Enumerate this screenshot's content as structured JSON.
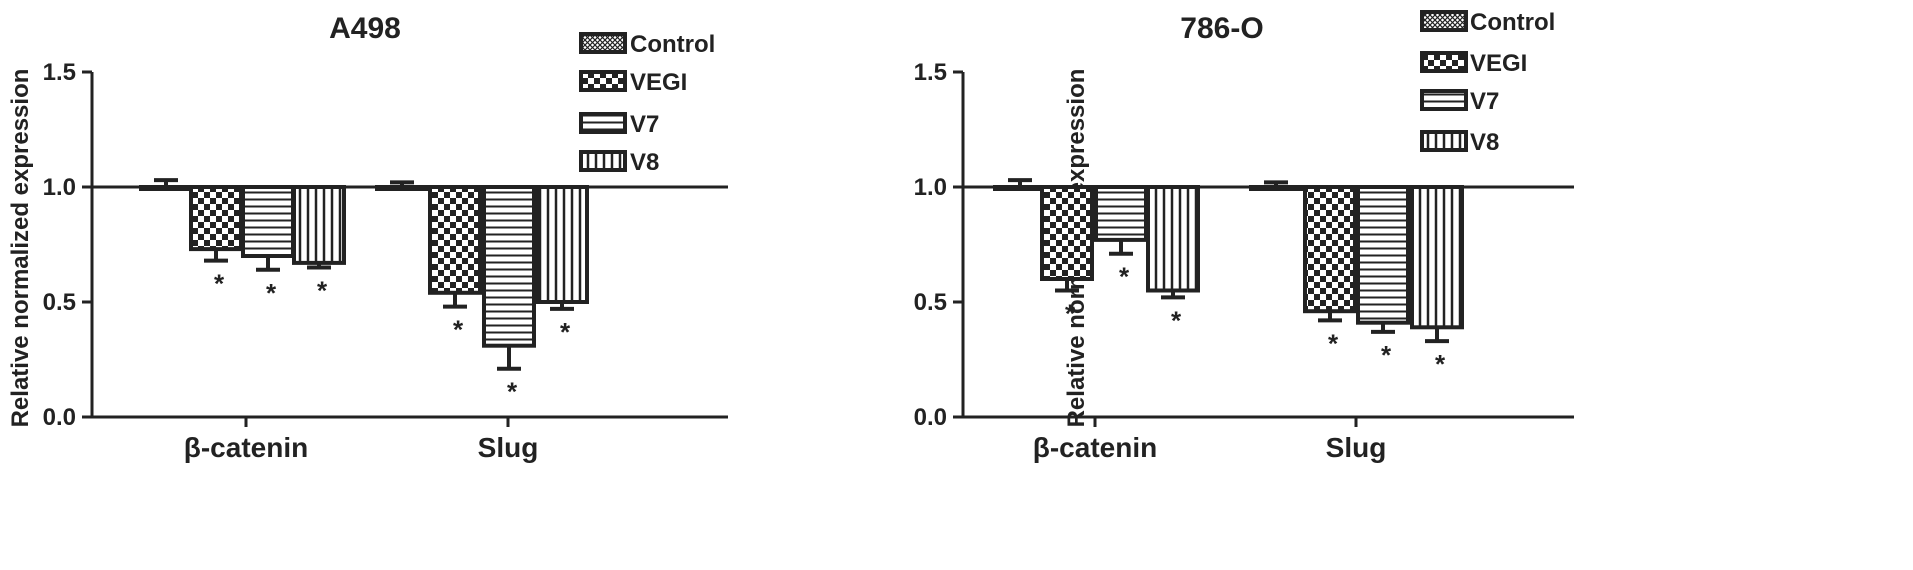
{
  "chart_data": [
    {
      "type": "bar",
      "title": "A498",
      "ylabel": "Relative normalized expression",
      "xlabel": "",
      "ylim": [
        0,
        1.5
      ],
      "yticks": [
        "0.0",
        "0.5",
        "1.0",
        "1.5"
      ],
      "categories": [
        "β-catenin",
        "Slug"
      ],
      "baseline": 1.0,
      "series": [
        {
          "name": "Control",
          "values": [
            1.0,
            1.0
          ],
          "errors": [
            0.03,
            0.02
          ],
          "pattern": "crosshatch",
          "marks": [
            "",
            ""
          ]
        },
        {
          "name": "VEGI",
          "values": [
            0.73,
            0.54
          ],
          "errors": [
            0.05,
            0.06
          ],
          "pattern": "checker",
          "marks": [
            "*",
            "*"
          ]
        },
        {
          "name": "V7",
          "values": [
            0.7,
            0.31
          ],
          "errors": [
            0.06,
            0.1
          ],
          "pattern": "hstripes",
          "marks": [
            "*",
            "*"
          ]
        },
        {
          "name": "V8",
          "values": [
            0.67,
            0.5
          ],
          "errors": [
            0.02,
            0.03
          ],
          "pattern": "vstripes",
          "marks": [
            "*",
            "*"
          ]
        }
      ],
      "legend_position": "top-right"
    },
    {
      "type": "bar",
      "title": "786-O",
      "ylabel": "Relative normalized expression",
      "xlabel": "",
      "ylim": [
        0,
        1.5
      ],
      "yticks": [
        "0.0",
        "0.5",
        "1.0",
        "1.5"
      ],
      "categories": [
        "β-catenin",
        "Slug"
      ],
      "baseline": 1.0,
      "series": [
        {
          "name": "Control",
          "values": [
            1.0,
            1.0
          ],
          "errors": [
            0.03,
            0.02
          ],
          "pattern": "crosshatch",
          "marks": [
            "",
            ""
          ]
        },
        {
          "name": "VEGI",
          "values": [
            0.6,
            0.46
          ],
          "errors": [
            0.05,
            0.04
          ],
          "pattern": "checker",
          "marks": [
            "*",
            "*"
          ]
        },
        {
          "name": "V7",
          "values": [
            0.77,
            0.41
          ],
          "errors": [
            0.06,
            0.04
          ],
          "pattern": "hstripes",
          "marks": [
            "*",
            "*"
          ]
        },
        {
          "name": "V8",
          "values": [
            0.55,
            0.39
          ],
          "errors": [
            0.03,
            0.06
          ],
          "pattern": "vstripes",
          "marks": [
            "*",
            "*"
          ]
        }
      ],
      "legend_position": "top-right"
    }
  ]
}
